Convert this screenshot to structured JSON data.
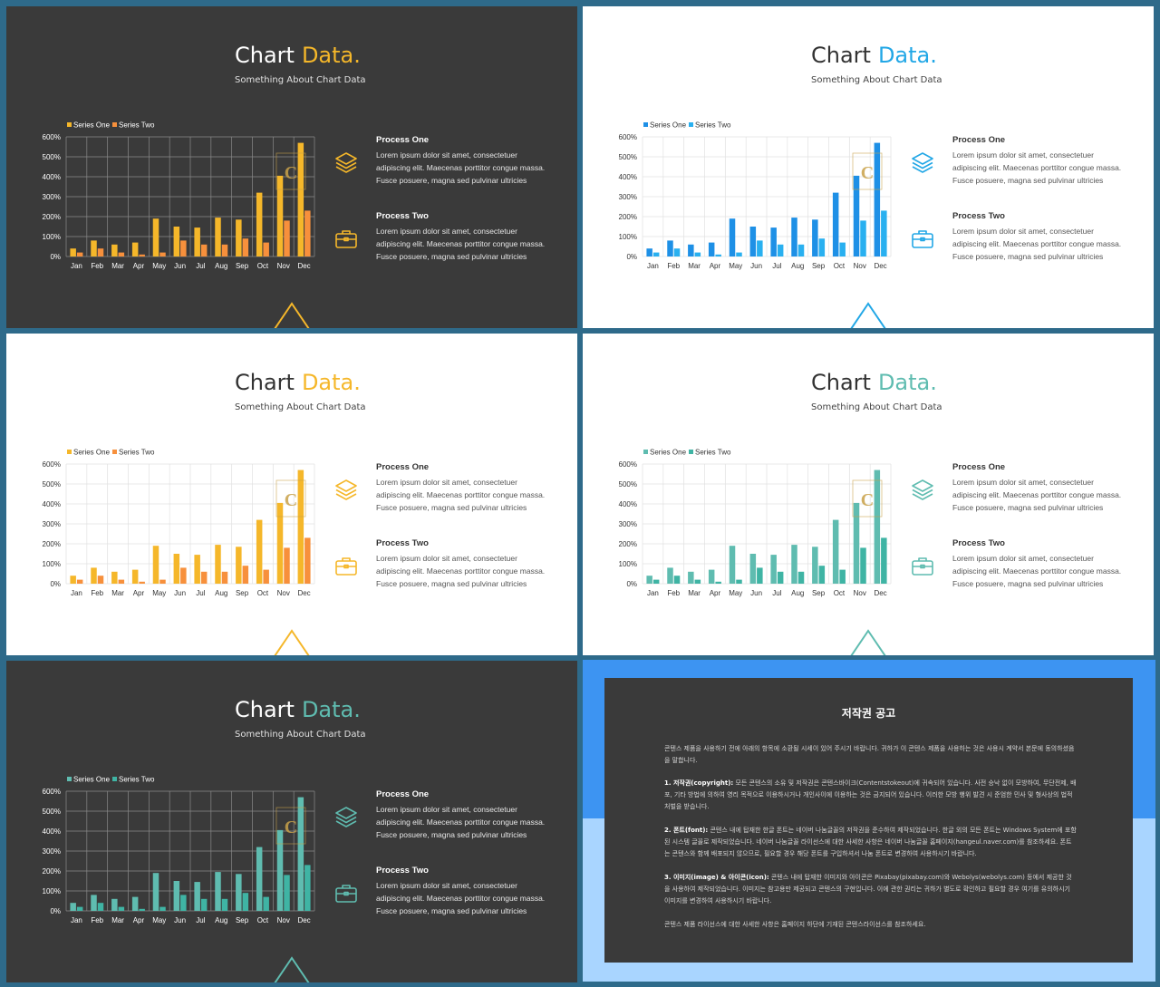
{
  "slides": [
    {
      "theme": "dark",
      "accent": "#f5b72a",
      "series": [
        "#f5b72a",
        "#f7903c"
      ],
      "gridColor": "#8a8a8a",
      "labelColor": "#ffffff"
    },
    {
      "theme": "light",
      "accent": "#22a7e6",
      "series": [
        "#1e90e6",
        "#29b0f0"
      ],
      "gridColor": "#e1e1e1",
      "labelColor": "#333333"
    },
    {
      "theme": "light",
      "accent": "#f5b72a",
      "series": [
        "#f5b72a",
        "#f7903c"
      ],
      "gridColor": "#e1e1e1",
      "labelColor": "#333333"
    },
    {
      "theme": "light",
      "accent": "#5fbcb0",
      "series": [
        "#5fbcb0",
        "#3fb4a4"
      ],
      "gridColor": "#e1e1e1",
      "labelColor": "#333333"
    },
    {
      "theme": "dark",
      "accent": "#5fbcb0",
      "series": [
        "#5fbcb0",
        "#3fb4a4"
      ],
      "gridColor": "#8a8a8a",
      "labelColor": "#ffffff"
    }
  ],
  "title_main": "Chart",
  "title_accent": "Data.",
  "subtitle": "Something About Chart Data",
  "watermark_letter": "C",
  "process_one": {
    "heading": "Process One",
    "text_lines": [
      "Lorem ipsum dolor sit amet, consectetuer",
      "adipiscing elit. Maecenas porttitor congue massa.",
      "Fusce posuere, magna sed pulvinar ultricies"
    ],
    "icon": "layers-icon"
  },
  "process_two": {
    "heading": "Process Two",
    "text_lines": [
      "Lorem ipsum dolor sit amet, consectetuer",
      "adipiscing elit. Maecenas porttitor congue massa.",
      "Fusce posuere, magna sed pulvinar ultricies"
    ],
    "icon": "briefcase-icon"
  },
  "chart_data": {
    "type": "bar",
    "categories": [
      "Jan",
      "Feb",
      "Mar",
      "Apr",
      "May",
      "Jun",
      "Jul",
      "Aug",
      "Sep",
      "Oct",
      "Nov",
      "Dec"
    ],
    "series": [
      {
        "name": "Series One",
        "values": [
          40,
          80,
          60,
          70,
          190,
          150,
          145,
          195,
          185,
          320,
          405,
          570
        ]
      },
      {
        "name": "Series Two",
        "values": [
          20,
          40,
          20,
          10,
          20,
          80,
          60,
          60,
          90,
          70,
          180,
          230
        ]
      }
    ],
    "ylim": [
      0,
      600
    ],
    "yticks": [
      "0%",
      "100%",
      "200%",
      "300%",
      "400%",
      "500%",
      "600%"
    ],
    "grid": true,
    "legend": "top-left"
  },
  "notice": {
    "title": "저작권 공고",
    "intro": "콘텐스 제품을 사용하기 전에 아래의 항목에 소환될 시세이 있어 주시기 바랍니다. 귀하가 이 콘텐스 제품을 사용하는 것은 사용시 계약서 본문에 동의하셨음을 말합니다.",
    "item1_label": "1. 저작권(copyright):",
    "item1_text": " 모든 콘텐스의 소유 및 저작권은 콘텐스바이크(Contentstokeout)에 귀속되어 있습니다. 사전 승낙 없이 모방하여, 무단전제, 배포, 기타 방법에 의하여 영리 목적으로 이용하시거나 개인사이에 이용하는 것은 금지되어 있습니다. 이러한 모방 행위 발견 시 준엄한 민사 및 형사상의 법적 처벌을 받습니다.",
    "item2_label": "2. 폰트(font):",
    "item2_text": " 콘텐스 내에 탑재한 한글 폰트는 네이버 나눔글꼴의 저작권을 준수하여 제작되었습니다. 한글 외의 모든 폰트는 Windows System에 포함된 시스템 글꼴로 제작되었습니다. 네이버 나눔글꼴 라이선스에 대한 사세한 사항은 네이버 나눔글꼴 홈페이지(hangeul.naver.com)를 참조하세요. 폰트는 콘텐스와 함께 배포되지 않으므로, 필요할 경우 해당 폰트를 구입하셔서 나눔 폰트로 변경하여 사용하시기 바랍니다.",
    "item3_label": "3. 이미지(image) & 아이콘(icon):",
    "item3_text": " 콘텐스 내에 탑재한 이미지와 아이콘은 Pixabay(pixabay.com)와 Webolys(webolys.com) 등에서 제공한 것을 사용하여 제작되었습니다. 이미지는 참고용만 제공되고 콘텐스의 구현입니다. 이에 관한 권리는 귀하가 별도로 확인하고 필요할 경우 여기를 유의하시기 이미지를 변경하여 사용하시기 바랍니다.",
    "outro": "콘텐스 제품 라이선스에 대한 사세한 사항은 홈페이지 하단에 기재된 콘텐스라이선스를 참조하세요."
  }
}
